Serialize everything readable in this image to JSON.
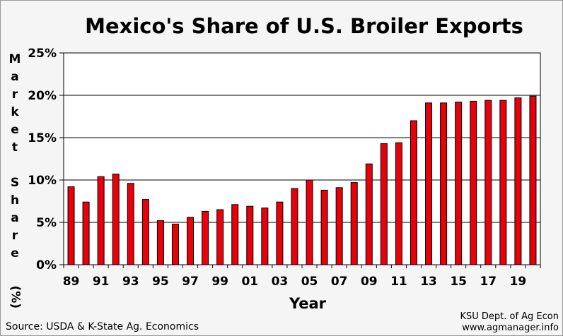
{
  "chart_data": {
    "type": "bar",
    "title": "Mexico's Share of U.S. Broiler Exports",
    "ylabel": "Market Share (%)",
    "xlabel": "Year",
    "ylim": [
      0,
      25
    ],
    "yticks": [
      0,
      5,
      10,
      15,
      20,
      25
    ],
    "ytick_labels": [
      "0%",
      "5%",
      "10%",
      "15%",
      "20%",
      "25%"
    ],
    "grid": "horizontal",
    "bar_color": "#e8000b",
    "categories": [
      "89",
      "90",
      "91",
      "92",
      "93",
      "94",
      "95",
      "96",
      "97",
      "98",
      "99",
      "00",
      "01",
      "02",
      "03",
      "04",
      "05",
      "06",
      "07",
      "08",
      "09",
      "10",
      "11",
      "12",
      "13",
      "14",
      "15",
      "16",
      "17",
      "18",
      "19",
      "20"
    ],
    "xtick_labels": [
      "89",
      "91",
      "93",
      "95",
      "97",
      "99",
      "01",
      "03",
      "05",
      "07",
      "09",
      "11",
      "13",
      "15",
      "17",
      "19"
    ],
    "values": [
      9.2,
      7.4,
      10.4,
      10.7,
      9.6,
      7.7,
      5.2,
      4.8,
      5.6,
      6.3,
      6.5,
      7.1,
      6.9,
      6.7,
      7.4,
      9.0,
      10.0,
      8.8,
      9.1,
      9.7,
      11.9,
      14.3,
      14.4,
      17.0,
      19.1,
      19.1,
      19.2,
      19.3,
      19.4,
      19.4,
      19.7,
      19.9
    ]
  },
  "ylabel_lines": [
    "Market",
    "Share",
    "(%)"
  ],
  "footer": {
    "source": "Source:  USDA & K-State Ag. Economics",
    "credit_line1": "KSU Dept. of Ag Econ",
    "credit_line2": "www.agmanager.info"
  }
}
